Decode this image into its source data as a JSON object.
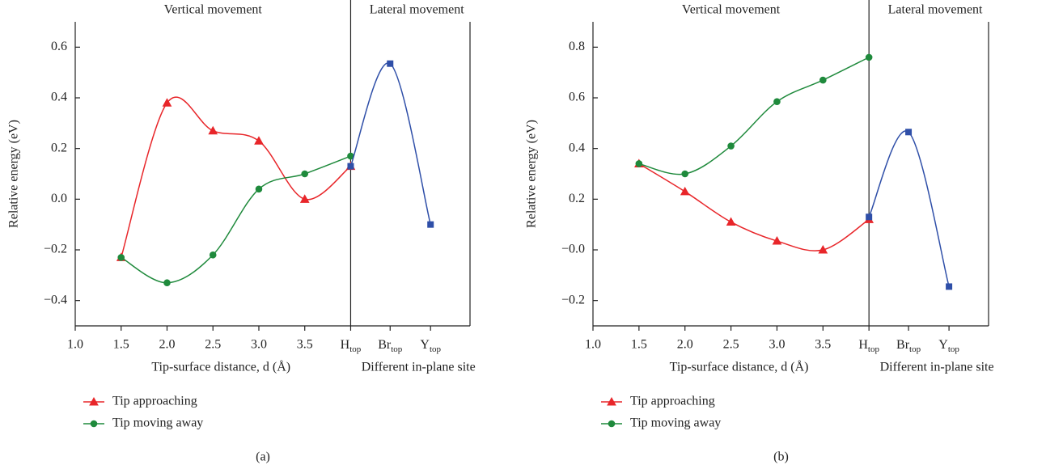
{
  "chart_data": [
    {
      "type": "line",
      "panel_label": "(a)",
      "section_labels": [
        "Vertical movement",
        "Lateral movement"
      ],
      "xlabel": "Tip-surface distance, d (Å)",
      "xlabel2": "Different in-plane site",
      "ylabel": "Relative energy (eV)",
      "xlim": [
        1.0,
        5.3
      ],
      "ylim": [
        -0.5,
        0.7
      ],
      "xticks": [
        {
          "value": 1.0,
          "label": "1.0"
        },
        1.5,
        {
          "value": 2.0,
          "label": "2.0"
        },
        2.5,
        {
          "value": 3.0,
          "label": "3.0"
        },
        3.5
      ],
      "site_ticks": [
        {
          "value": 4.0,
          "label": "H",
          "sub": "top"
        },
        {
          "value": 4.43,
          "label": "Br",
          "sub": "top"
        },
        {
          "value": 4.87,
          "label": "Y",
          "sub": "top"
        }
      ],
      "yticks": [
        {
          "value": -0.4,
          "label": "−0.4"
        },
        {
          "value": -0.2,
          "label": "−0.2"
        },
        {
          "value": 0.0,
          "label": "0.0"
        },
        0.2,
        0.4,
        0.6
      ],
      "series": [
        {
          "name": "Tip approaching",
          "color": "#e8262a",
          "marker": "triangle",
          "x": [
            1.5,
            2.0,
            2.5,
            3.0,
            3.5,
            4.0
          ],
          "values": [
            -0.23,
            0.38,
            0.27,
            0.23,
            0.0,
            0.13
          ]
        },
        {
          "name": "Tip moving away",
          "color": "#1f8a3c",
          "marker": "circle",
          "x": [
            1.5,
            2.0,
            2.5,
            3.0,
            3.5,
            4.0
          ],
          "values": [
            -0.23,
            -0.33,
            -0.22,
            0.04,
            0.1,
            0.17
          ]
        },
        {
          "color": "#2f4fa8",
          "marker": "square",
          "x": [
            4.0,
            4.43,
            4.87
          ],
          "values": [
            0.13,
            0.535,
            -0.1
          ]
        }
      ]
    },
    {
      "type": "line",
      "panel_label": "(b)",
      "section_labels": [
        "Vertical movement",
        "Lateral movement"
      ],
      "xlabel": "Tip-surface distance, d (Å)",
      "xlabel2": "Different in-plane site",
      "ylabel": "Relative energy (eV)",
      "xlim": [
        1.0,
        5.3
      ],
      "ylim": [
        -0.3,
        0.9
      ],
      "xticks": [
        {
          "value": 1.0,
          "label": "1.0"
        },
        1.5,
        {
          "value": 2.0,
          "label": "2.0"
        },
        2.5,
        {
          "value": 3.0,
          "label": "3.0"
        },
        3.5
      ],
      "site_ticks": [
        {
          "value": 4.0,
          "label": "H",
          "sub": "top"
        },
        {
          "value": 4.43,
          "label": "Br",
          "sub": "top"
        },
        {
          "value": 4.87,
          "label": "Y",
          "sub": "top"
        }
      ],
      "yticks": [
        {
          "value": -0.2,
          "label": "−0.2"
        },
        {
          "value": 0.0,
          "label": "−0.0"
        },
        0.2,
        0.4,
        0.6,
        0.8
      ],
      "series": [
        {
          "name": "Tip approaching",
          "color": "#e8262a",
          "marker": "triangle",
          "x": [
            1.5,
            2.0,
            2.5,
            3.0,
            3.5,
            4.0
          ],
          "values": [
            0.34,
            0.23,
            0.11,
            0.035,
            0.0,
            0.12
          ]
        },
        {
          "name": "Tip moving away",
          "color": "#1f8a3c",
          "marker": "circle",
          "x": [
            1.5,
            2.0,
            2.5,
            3.0,
            3.5,
            4.0
          ],
          "values": [
            0.34,
            0.3,
            0.41,
            0.585,
            0.67,
            0.76
          ]
        },
        {
          "color": "#2f4fa8",
          "marker": "square",
          "x": [
            4.0,
            4.43,
            4.87
          ],
          "values": [
            0.13,
            0.465,
            -0.145
          ]
        }
      ]
    }
  ]
}
